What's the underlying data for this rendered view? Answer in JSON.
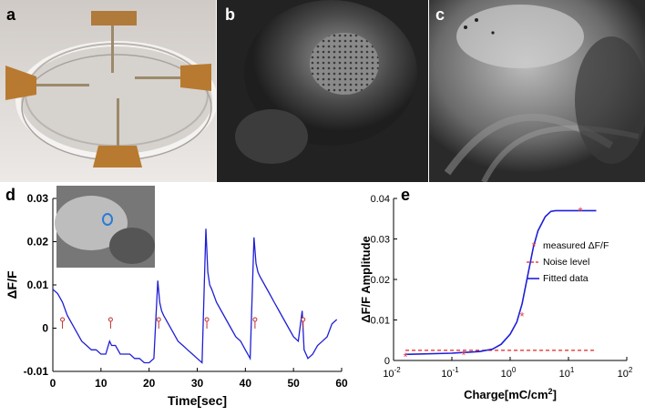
{
  "panels": {
    "a": {
      "label": "a"
    },
    "b": {
      "label": "b"
    },
    "c": {
      "label": "c"
    },
    "d": {
      "label": "d"
    },
    "e": {
      "label": "e"
    }
  },
  "chart_data": [
    {
      "type": "line",
      "panel": "d",
      "xlabel": "Time[sec]",
      "ylabel": "ΔF/F",
      "xlim": [
        0,
        60
      ],
      "ylim": [
        -0.01,
        0.03
      ],
      "xticks": [
        "0",
        "10",
        "20",
        "30",
        "40",
        "50",
        "60"
      ],
      "yticks": [
        "-0.01",
        "0",
        "0.01",
        "0.02",
        "0.03"
      ],
      "series": [
        {
          "color": "#1f1fd6",
          "x": [
            0,
            1,
            2,
            3,
            4,
            5,
            6,
            7,
            8,
            9,
            10,
            11,
            11.8,
            12.2,
            13,
            14,
            15,
            16,
            17,
            18,
            19,
            20,
            21,
            21.8,
            22.2,
            22.6,
            23,
            24,
            25,
            26,
            27,
            28,
            29,
            30,
            31,
            31.8,
            32.2,
            32.6,
            33,
            34,
            35,
            36,
            37,
            38,
            39,
            40,
            41,
            41.8,
            42.2,
            42.6,
            43,
            44,
            45,
            46,
            47,
            48,
            49,
            50,
            51,
            51.8,
            52.2,
            52.6,
            53,
            54,
            55,
            56,
            57,
            58,
            59
          ],
          "y": [
            0.009,
            0.008,
            0.006,
            0.003,
            0.001,
            -0.001,
            -0.003,
            -0.004,
            -0.005,
            -0.005,
            -0.006,
            -0.006,
            -0.003,
            -0.004,
            -0.004,
            -0.006,
            -0.006,
            -0.006,
            -0.007,
            -0.007,
            -0.008,
            -0.008,
            -0.007,
            0.011,
            0.006,
            0.004,
            0.003,
            0.001,
            -0.001,
            -0.003,
            -0.004,
            -0.005,
            -0.006,
            -0.007,
            -0.008,
            0.023,
            0.013,
            0.01,
            0.009,
            0.006,
            0.004,
            0.002,
            0.0,
            -0.002,
            -0.003,
            -0.005,
            -0.007,
            0.021,
            0.015,
            0.013,
            0.012,
            0.01,
            0.008,
            0.006,
            0.004,
            0.002,
            0.0,
            -0.002,
            -0.003,
            0.004,
            -0.005,
            -0.006,
            -0.007,
            -0.006,
            -0.004,
            -0.003,
            -0.002,
            0.001,
            0.002
          ]
        }
      ],
      "stimulus_markers_x": [
        2,
        12,
        22,
        32,
        42,
        52
      ],
      "stimulus_marker_y": 0.002
    },
    {
      "type": "line",
      "panel": "e",
      "xlabel": "Charge[mC/cm",
      "xlabel_sup": "2",
      "xlabel_end": "]",
      "ylabel": "ΔF/F Amplitude",
      "xscale": "log",
      "xlim": [
        0.01,
        100
      ],
      "ylim": [
        0,
        0.04
      ],
      "xtick_base": "10",
      "xtick_exps": [
        "-2",
        "-1",
        "0",
        "1",
        "2"
      ],
      "yticks": [
        "0",
        "0.01",
        "0.02",
        "0.03",
        "0.04"
      ],
      "legend": {
        "placement": "right",
        "entries": [
          "measured ΔF/F",
          "Noise level",
          "Fitted data"
        ]
      },
      "measured": {
        "color": "#e04040",
        "x": [
          0.016,
          0.16,
          1.6,
          16
        ],
        "y": [
          0.001,
          0.0015,
          0.011,
          0.037
        ]
      },
      "noise_level": {
        "color": "#e02020",
        "x": [
          0.016,
          30
        ],
        "y": [
          0.0025,
          0.0025
        ]
      },
      "fitted": {
        "color": "#1f1fd6",
        "x": [
          0.016,
          0.1,
          0.3,
          0.5,
          0.7,
          1,
          1.3,
          1.6,
          2,
          2.5,
          3,
          4,
          5,
          6,
          10,
          16,
          30
        ],
        "y": [
          0.0015,
          0.0018,
          0.0022,
          0.0028,
          0.004,
          0.0065,
          0.0095,
          0.014,
          0.021,
          0.028,
          0.032,
          0.0355,
          0.0368,
          0.037,
          0.037,
          0.037,
          0.037
        ]
      }
    }
  ]
}
